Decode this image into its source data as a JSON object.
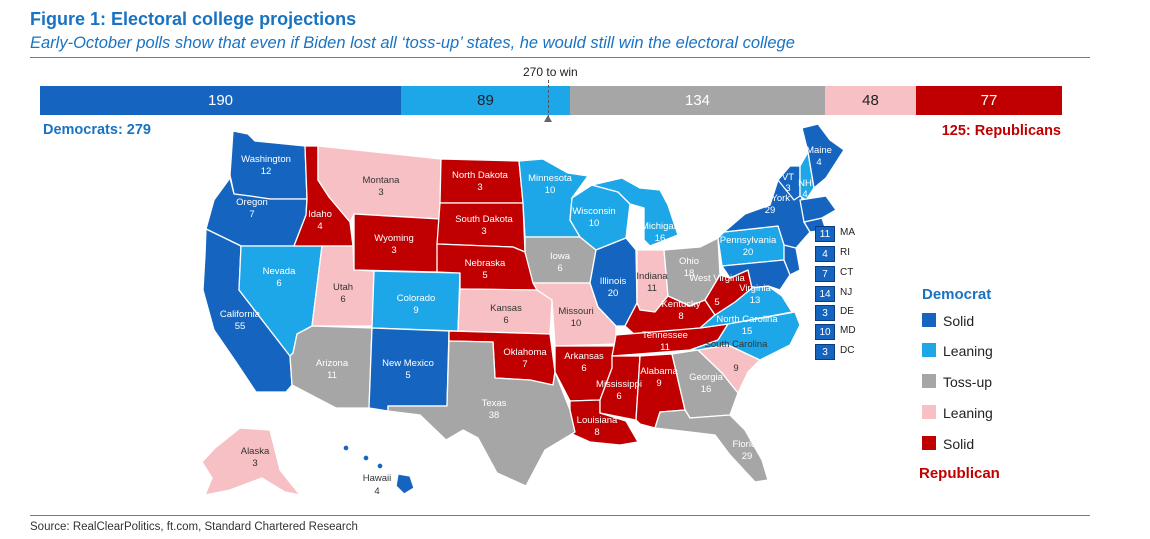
{
  "figure": {
    "title": "Figure 1: Electoral college projections",
    "subtitle": "Early-October polls show that even if Biden lost all ‘toss-up’ states, he would still win the electoral college",
    "source": "Source: RealClearPolitics, ft.com, Standard Chartered Research"
  },
  "colors": {
    "solid_dem": "#1565c0",
    "lean_dem": "#1ea7e8",
    "tossup": "#a6a6a6",
    "lean_rep": "#f7c0c4",
    "solid_rep": "#c00000",
    "dem_text": "#1a73c2",
    "rep_text": "#c00000"
  },
  "bar": {
    "threshold_label": "270 to win",
    "dem_total_label": "Democrats: 279",
    "rep_total_label": "125: Republicans",
    "segments": [
      {
        "category": "solid_dem",
        "value": "190"
      },
      {
        "category": "lean_dem",
        "value": "89"
      },
      {
        "category": "tossup",
        "value": "134"
      },
      {
        "category": "lean_rep",
        "value": "48"
      },
      {
        "category": "solid_rep",
        "value": "77"
      }
    ]
  },
  "states": {
    "WA": {
      "name": "Washington",
      "ev": "12"
    },
    "OR": {
      "name": "Oregon",
      "ev": "7"
    },
    "CA": {
      "name": "California",
      "ev": "55"
    },
    "NV": {
      "name": "Nevada",
      "ev": "6"
    },
    "ID": {
      "name": "Idaho",
      "ev": "4"
    },
    "MT": {
      "name": "Montana",
      "ev": "3"
    },
    "WY": {
      "name": "Wyoming",
      "ev": "3"
    },
    "UT": {
      "name": "Utah",
      "ev": "6"
    },
    "CO": {
      "name": "Colorado",
      "ev": "9"
    },
    "AZ": {
      "name": "Arizona",
      "ev": "11"
    },
    "NM": {
      "name": "New Mexico",
      "ev": "5"
    },
    "ND": {
      "name": "North Dakota",
      "ev": "3"
    },
    "SD": {
      "name": "South Dakota",
      "ev": "3"
    },
    "NE": {
      "name": "Nebraska",
      "ev": "5"
    },
    "KS": {
      "name": "Kansas",
      "ev": "6"
    },
    "OK": {
      "name": "Oklahoma",
      "ev": "7"
    },
    "TX": {
      "name": "Texas",
      "ev": "38"
    },
    "MN": {
      "name": "Minnesota",
      "ev": "10"
    },
    "IA": {
      "name": "Iowa",
      "ev": "6"
    },
    "MO": {
      "name": "Missouri",
      "ev": "10"
    },
    "AR": {
      "name": "Arkansas",
      "ev": "6"
    },
    "LA": {
      "name": "Louisiana",
      "ev": "8"
    },
    "WI": {
      "name": "Wisconsin",
      "ev": "10"
    },
    "IL": {
      "name": "Illinois",
      "ev": "20"
    },
    "MI": {
      "name": "Michigan",
      "ev": "16"
    },
    "IN": {
      "name": "Indiana",
      "ev": "11"
    },
    "OH": {
      "name": "Ohio",
      "ev": "18"
    },
    "KY": {
      "name": "Kentucky",
      "ev": "8"
    },
    "TN": {
      "name": "Tennessee",
      "ev": "11"
    },
    "MS": {
      "name": "Mississippi",
      "ev": "6"
    },
    "AL": {
      "name": "Alabama",
      "ev": "9"
    },
    "GA": {
      "name": "Georgia",
      "ev": "16"
    },
    "FL": {
      "name": "Florida",
      "ev": "29"
    },
    "SC": {
      "name": "South Carolina",
      "ev": "9"
    },
    "NC": {
      "name": "North Carolina",
      "ev": "15"
    },
    "VA": {
      "name": "Virginia",
      "ev": "13"
    },
    "WV": {
      "name": "West Virginia",
      "ev": "5"
    },
    "PA": {
      "name": "Pennsylvania",
      "ev": "20"
    },
    "NY": {
      "name": "New York",
      "ev": "29"
    },
    "VT": {
      "name": "VT",
      "ev": "3"
    },
    "NH": {
      "name": "NH",
      "ev": "4"
    },
    "ME": {
      "name": "Maine",
      "ev": "4"
    },
    "AK": {
      "name": "Alaska",
      "ev": "3"
    },
    "HI": {
      "name": "Hawaii",
      "ev": "4"
    }
  },
  "small_states": [
    {
      "abbr": "MA",
      "ev": "11"
    },
    {
      "abbr": "RI",
      "ev": "4"
    },
    {
      "abbr": "CT",
      "ev": "7"
    },
    {
      "abbr": "NJ",
      "ev": "14"
    },
    {
      "abbr": "DE",
      "ev": "3"
    },
    {
      "abbr": "MD",
      "ev": "10"
    },
    {
      "abbr": "DC",
      "ev": "3"
    }
  ],
  "legend": {
    "dem_heading": "Democrat",
    "rep_heading": "Republican",
    "items": [
      {
        "label": "Solid",
        "category": "solid_dem"
      },
      {
        "label": "Leaning",
        "category": "lean_dem"
      },
      {
        "label": "Toss-up",
        "category": "tossup"
      },
      {
        "label": "Leaning",
        "category": "lean_rep"
      },
      {
        "label": "Solid",
        "category": "solid_rep"
      }
    ]
  }
}
